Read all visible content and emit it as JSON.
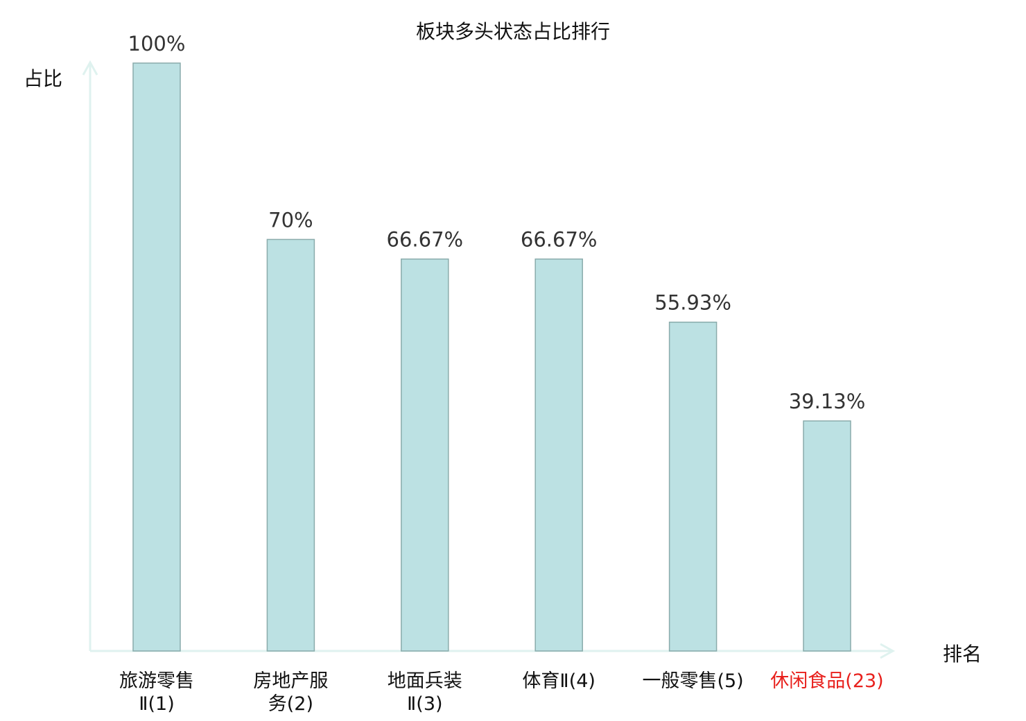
{
  "chart_data": {
    "type": "bar",
    "title": "板块多头状态占比排行",
    "ylabel": "占比",
    "xlabel": "排名",
    "categories": [
      "旅游零售Ⅱ(1)",
      "房地产服务(2)",
      "地面兵装Ⅱ(3)",
      "体育Ⅱ(4)",
      "一般零售(5)",
      "休闲食品(23)"
    ],
    "values": [
      100,
      70,
      66.67,
      66.67,
      55.93,
      39.13
    ],
    "data_labels": [
      "100%",
      "70%",
      "66.67%",
      "66.67%",
      "55.93%",
      "39.13%"
    ],
    "highlight_index": 5,
    "ylim": [
      0,
      100
    ],
    "grid": false,
    "colors": {
      "bar_fill": "#bce1e3",
      "bar_stroke": "#8aabab",
      "axis": "#dff2ef",
      "highlight_text": "#e8201c"
    }
  }
}
